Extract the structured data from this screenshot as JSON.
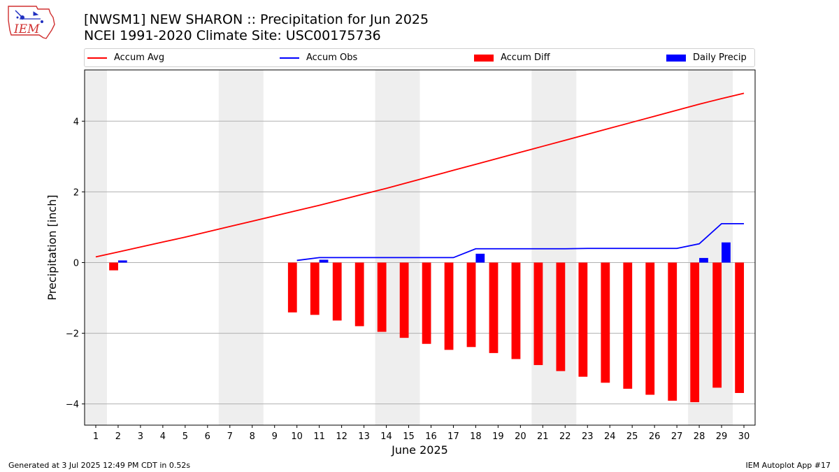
{
  "header": {
    "title_line1": "[NWSM1] NEW SHARON :: Precipitation for Jun 2025",
    "title_line2": "NCEI 1991-2020 Climate Site: USC00175736"
  },
  "logo": {
    "text": "IEM"
  },
  "footer": {
    "left": "Generated at 3 Jul 2025 12:49 PM CDT in 0.52s",
    "right": "IEM Autoplot App #17"
  },
  "chart_data": {
    "type": "bar",
    "xlabel": "June 2025",
    "ylabel": "Precipitation [inch]",
    "xlim": [
      0.5,
      30.5
    ],
    "ylim": [
      -4.6,
      5.45
    ],
    "yticks": [
      -4,
      -2,
      0,
      2,
      4
    ],
    "ytick_labels": [
      "−4",
      "−2",
      "0",
      "2",
      "4"
    ],
    "categories": [
      1,
      2,
      3,
      4,
      5,
      6,
      7,
      8,
      9,
      10,
      11,
      12,
      13,
      14,
      15,
      16,
      17,
      18,
      19,
      20,
      21,
      22,
      23,
      24,
      25,
      26,
      27,
      28,
      29,
      30
    ],
    "weekend_days": [
      1,
      7,
      8,
      14,
      15,
      21,
      22,
      28,
      29
    ],
    "grid": true,
    "legend": "top",
    "colors": {
      "accum_avg": "#ff0000",
      "accum_obs": "#0000ff",
      "accum_diff": "#ff0000",
      "daily_precip": "#0000ff",
      "weekend_shade": "#eeeeee",
      "grid": "#b0b0b0"
    },
    "series": [
      {
        "name": "Accum Avg",
        "kind": "line",
        "x": [
          1,
          2,
          3,
          4,
          5,
          6,
          7,
          8,
          9,
          10,
          11,
          12,
          13,
          14,
          15,
          16,
          17,
          18,
          19,
          20,
          21,
          22,
          23,
          24,
          25,
          26,
          27,
          28,
          29,
          30
        ],
        "values": [
          0.16,
          0.3,
          0.44,
          0.58,
          0.72,
          0.87,
          1.02,
          1.17,
          1.32,
          1.47,
          1.62,
          1.78,
          1.94,
          2.1,
          2.27,
          2.44,
          2.61,
          2.78,
          2.95,
          3.12,
          3.29,
          3.46,
          3.63,
          3.8,
          3.97,
          4.14,
          4.31,
          4.48,
          4.64,
          4.79
        ]
      },
      {
        "name": "Accum Obs",
        "kind": "line",
        "x": [
          10,
          11,
          12,
          13,
          14,
          15,
          16,
          17,
          18,
          19,
          20,
          21,
          22,
          23,
          24,
          25,
          26,
          27,
          28,
          29,
          30
        ],
        "values": [
          0.06,
          0.14,
          0.14,
          0.14,
          0.14,
          0.14,
          0.14,
          0.14,
          0.39,
          0.39,
          0.39,
          0.39,
          0.39,
          0.4,
          0.4,
          0.4,
          0.4,
          0.4,
          0.53,
          1.1,
          1.1
        ]
      },
      {
        "name": "Accum Diff",
        "kind": "bar",
        "x": [
          2,
          10,
          11,
          12,
          13,
          14,
          15,
          16,
          17,
          18,
          19,
          20,
          21,
          22,
          23,
          24,
          25,
          26,
          27,
          28,
          29,
          30
        ],
        "values": [
          -0.22,
          -1.41,
          -1.48,
          -1.64,
          -1.8,
          -1.96,
          -2.13,
          -2.3,
          -2.47,
          -2.39,
          -2.56,
          -2.73,
          -2.9,
          -3.07,
          -3.23,
          -3.4,
          -3.57,
          -3.74,
          -3.91,
          -3.95,
          -3.54,
          -3.69
        ]
      },
      {
        "name": "Daily Precip",
        "kind": "bar",
        "x": [
          2,
          11,
          18,
          28,
          29
        ],
        "values": [
          0.06,
          0.08,
          0.25,
          0.13,
          0.57
        ]
      }
    ]
  }
}
